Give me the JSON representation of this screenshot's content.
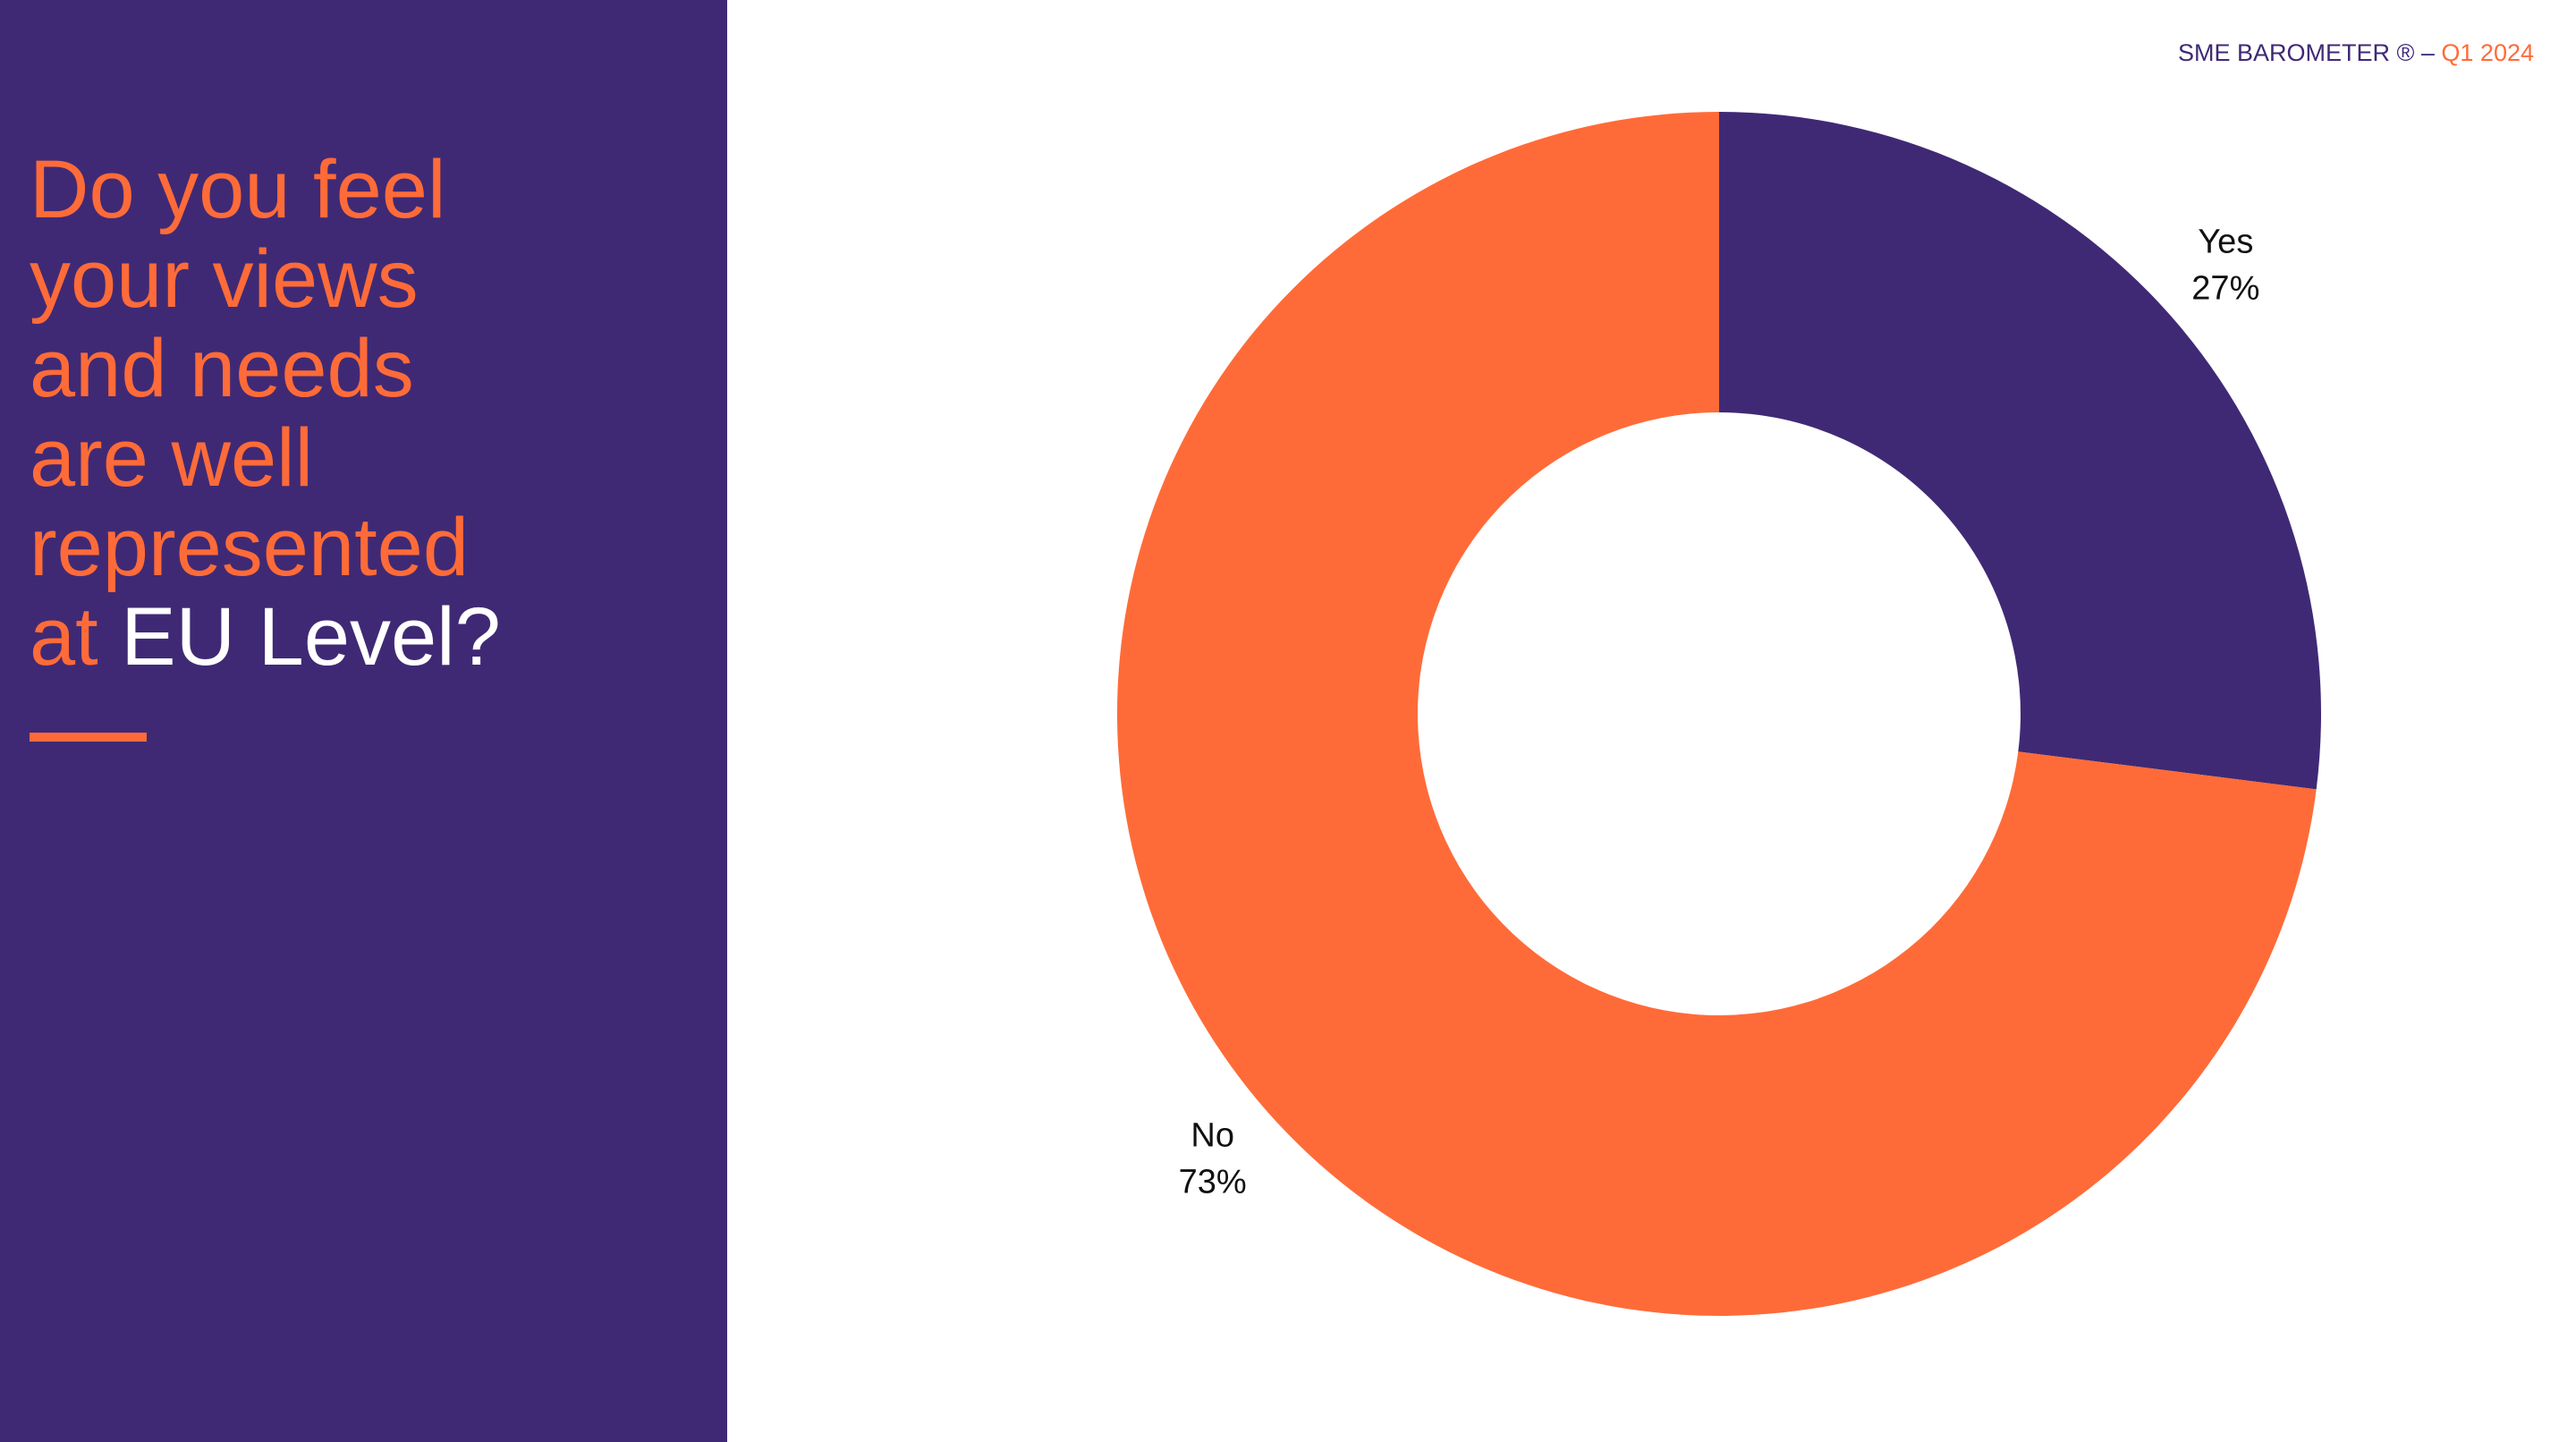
{
  "slide": {
    "title_lines": [
      "Do you feel",
      "your views",
      "and needs",
      "are well",
      "represented",
      "at"
    ],
    "title_end": "EU Level?"
  },
  "header": {
    "brand": "SME BAROMETER ® –",
    "period": "Q1 2024"
  },
  "chart_data": {
    "type": "pie",
    "hole": true,
    "categories": [
      "Yes",
      "No"
    ],
    "values": [
      27,
      73
    ],
    "value_labels": [
      "27%",
      "73%"
    ],
    "colors": [
      "#3f2975",
      "#ff6b38"
    ]
  }
}
